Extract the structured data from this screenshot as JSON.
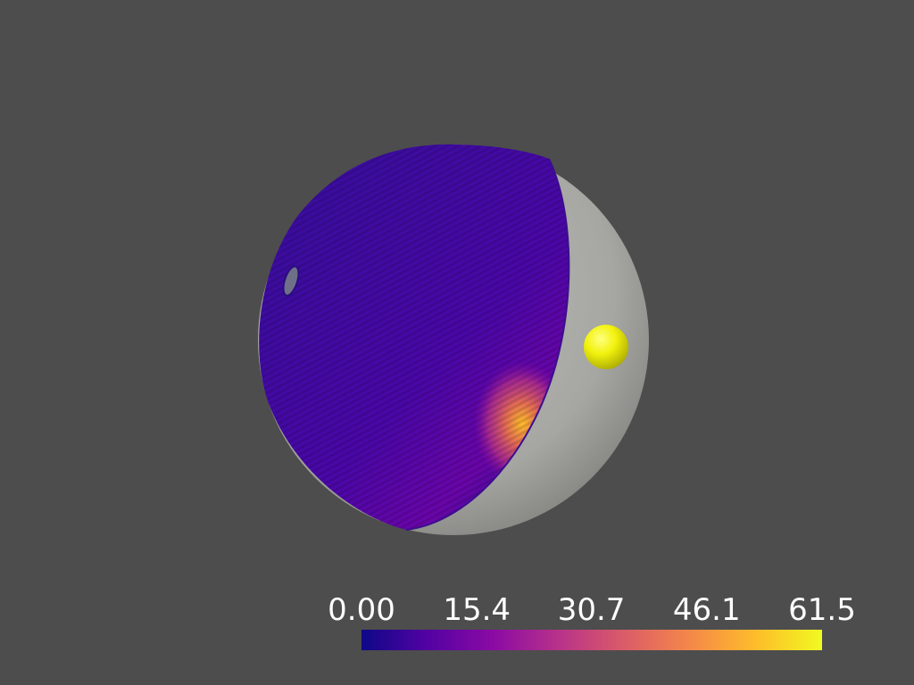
{
  "scene": {
    "background_color": "#4d4d4d",
    "objects": [
      {
        "name": "colored-hemisphere",
        "colormap": "plasma"
      },
      {
        "name": "translucent-outer-sphere",
        "color": "#a9a9a5"
      },
      {
        "name": "small-sphere",
        "color": "#f2f20f"
      }
    ]
  },
  "colorbar": {
    "colormap": "plasma",
    "min": 0.0,
    "max": 61.5,
    "ticks": [
      {
        "label": "0.00",
        "value": 0.0
      },
      {
        "label": "15.4",
        "value": 15.4
      },
      {
        "label": "30.7",
        "value": 30.7
      },
      {
        "label": "46.1",
        "value": 46.1
      },
      {
        "label": "61.5",
        "value": 61.5
      }
    ],
    "stops": [
      "#0d0887",
      "#5302a3",
      "#8b0aa5",
      "#b83289",
      "#db5c68",
      "#f48849",
      "#febd2a",
      "#f0f921"
    ]
  }
}
